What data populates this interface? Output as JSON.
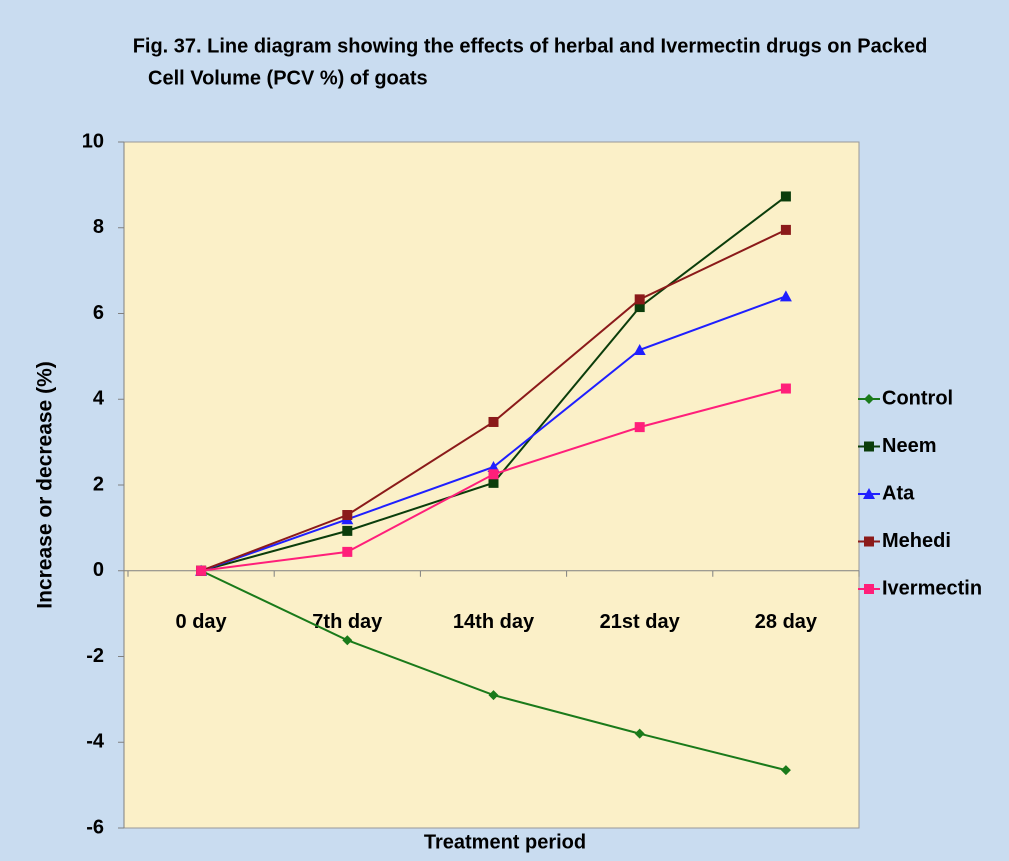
{
  "chart_data": {
    "type": "line",
    "title": [
      "Fig. 37. Line diagram showing the effects of herbal and Ivermectin drugs on Packed",
      "Cell Volume (PCV %) of goats"
    ],
    "xlabel": "Treatment period",
    "ylabel": "Increase or decrease (%)",
    "categories": [
      "0 day",
      "7th day",
      "14th day",
      "21st day",
      "28 day"
    ],
    "series": [
      {
        "name": "Control",
        "color": "#1a7a1a",
        "marker": "diamond",
        "values": [
          0,
          -1.62,
          -2.9,
          -3.8,
          -4.65
        ]
      },
      {
        "name": "Neem",
        "color": "#0b3d0b",
        "marker": "square",
        "values": [
          0,
          0.93,
          2.05,
          6.15,
          8.73
        ]
      },
      {
        "name": "Ata",
        "color": "#1f1fff",
        "marker": "triangle",
        "values": [
          0,
          1.2,
          2.42,
          5.15,
          6.4
        ]
      },
      {
        "name": "Mehedi",
        "color": "#8b1a1a",
        "marker": "square",
        "values": [
          0,
          1.3,
          3.47,
          6.33,
          7.95
        ]
      },
      {
        "name": "Ivermectin",
        "color": "#ff1f7a",
        "marker": "square",
        "values": [
          0,
          0.44,
          2.25,
          3.35,
          4.25
        ]
      }
    ],
    "ylim": [
      -6,
      10
    ],
    "yticks": [
      -6,
      -4,
      -2,
      0,
      2,
      4,
      6,
      8,
      10
    ],
    "legend": "right"
  }
}
